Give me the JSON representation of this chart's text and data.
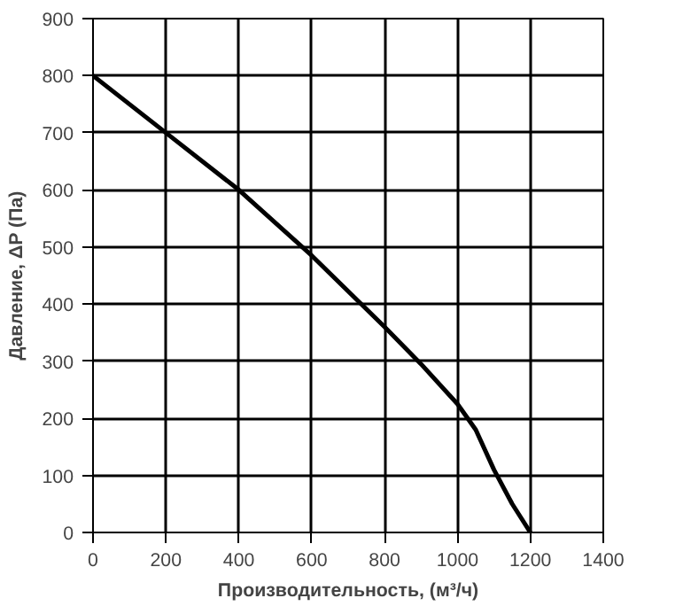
{
  "chart_data": {
    "type": "line",
    "xlabel": "Производительность, (м³/ч)",
    "ylabel": "Давление, ΔP (Па)",
    "x": [
      0,
      200,
      400,
      600,
      800,
      900,
      1000,
      1050,
      1100,
      1150,
      1200
    ],
    "series": [
      {
        "color": "#000000",
        "values": [
          800,
          700,
          600,
          485,
          360,
          295,
          225,
          180,
          110,
          50,
          0
        ]
      }
    ],
    "xlim": [
      0,
      1400
    ],
    "ylim": [
      0,
      900
    ],
    "xticks": [
      0,
      200,
      400,
      600,
      800,
      1000,
      1200,
      1400
    ],
    "yticks": [
      0,
      100,
      200,
      300,
      400,
      500,
      600,
      700,
      800,
      900
    ],
    "grid": true,
    "marker": "none",
    "line_style": "solid"
  }
}
